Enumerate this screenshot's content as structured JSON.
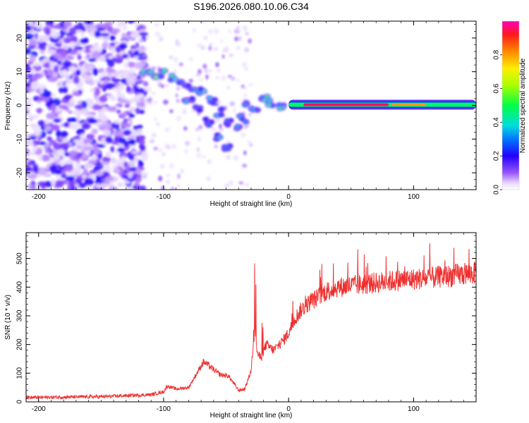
{
  "title": "S196.2026.080.10.06.C34",
  "chart_data": [
    {
      "type": "heatmap",
      "name": "spectrogram",
      "xlabel": "Height of straight line (km)",
      "ylabel": "Frequency (Hz)",
      "xlim": [
        -210,
        150
      ],
      "ylim": [
        -25,
        25
      ],
      "xticks": [
        -200,
        -100,
        0,
        100
      ],
      "yticks": [
        -20,
        -10,
        0,
        10,
        20
      ],
      "xtick_labels": [
        "-200",
        "-100",
        "0",
        "100"
      ],
      "ytick_labels": [
        "-20",
        "-10",
        "0",
        "10",
        "20"
      ],
      "ridge": [
        {
          "x": -115,
          "y": 10.5,
          "a": 0.45
        },
        {
          "x": -108,
          "y": 9.0,
          "a": 0.55
        },
        {
          "x": -100,
          "y": 9.5,
          "a": 0.4
        },
        {
          "x": -92,
          "y": 8.5,
          "a": 0.35
        },
        {
          "x": -85,
          "y": 6.0,
          "a": 0.35
        },
        {
          "x": -78,
          "y": 5.0,
          "a": 0.3
        },
        {
          "x": -70,
          "y": 4.0,
          "a": 0.35
        },
        {
          "x": -62,
          "y": 1.5,
          "a": 0.3
        },
        {
          "x": -55,
          "y": -2.0,
          "a": 0.3
        },
        {
          "x": -48,
          "y": -5.0,
          "a": 0.25
        },
        {
          "x": -42,
          "y": -6.0,
          "a": 0.35
        },
        {
          "x": -37,
          "y": -4.0,
          "a": 0.3
        },
        {
          "x": -80,
          "y": 2.0,
          "a": 0.3
        },
        {
          "x": -72,
          "y": -1.0,
          "a": 0.3
        },
        {
          "x": -64,
          "y": -5.0,
          "a": 0.25
        },
        {
          "x": -57,
          "y": -9.0,
          "a": 0.3
        },
        {
          "x": -50,
          "y": -13.0,
          "a": 0.35
        },
        {
          "x": -33,
          "y": 1.0,
          "a": 0.3
        },
        {
          "x": -27,
          "y": -0.5,
          "a": 0.35
        },
        {
          "x": -20,
          "y": 2.5,
          "a": 0.35
        },
        {
          "x": -13,
          "y": 0.5,
          "a": 0.35
        },
        {
          "x": -5,
          "y": 0.0,
          "a": 0.4
        }
      ],
      "band": {
        "x_start": 0,
        "x_end": 150,
        "freq": 0.2,
        "peak_amplitude": 0.95
      },
      "colorbar": {
        "label": "Normalized spectral amplitude",
        "range": [
          0.0,
          1.0
        ],
        "ticks": [
          0.0,
          0.2,
          0.4,
          0.6,
          0.8
        ],
        "tick_labels": [
          "0.0",
          "0.2",
          "0.4",
          "0.6",
          "0.8"
        ]
      }
    },
    {
      "type": "line",
      "name": "snr",
      "xlabel": "Height of straight line (km)",
      "ylabel": "SNR (10 * v/v)",
      "xlim": [
        -210,
        150
      ],
      "ylim": [
        0,
        590
      ],
      "xticks": [
        -200,
        -100,
        0,
        100
      ],
      "yticks": [
        0,
        100,
        200,
        300,
        400,
        500
      ],
      "xtick_labels": [
        "-200",
        "-100",
        "0",
        "100"
      ],
      "ytick_labels": [
        "0",
        "100",
        "200",
        "300",
        "400",
        "500"
      ],
      "color": "#f03030",
      "series": [
        {
          "name": "SNR",
          "x": [
            -210,
            -150,
            -110,
            -100,
            -97,
            -90,
            -80,
            -72,
            -68,
            -62,
            -55,
            -48,
            -40,
            -35,
            -30,
            -27,
            -25,
            -22,
            -18,
            -12,
            -5,
            0,
            5,
            10,
            15,
            20,
            30,
            40,
            50,
            60,
            70,
            80,
            90,
            100,
            110,
            120,
            130,
            140,
            150
          ],
          "values": [
            15,
            18,
            25,
            35,
            55,
            45,
            50,
            110,
            140,
            120,
            95,
            90,
            40,
            45,
            110,
            260,
            170,
            150,
            200,
            180,
            210,
            240,
            290,
            320,
            340,
            355,
            385,
            400,
            405,
            410,
            415,
            420,
            425,
            428,
            430,
            435,
            440,
            445,
            450
          ]
        }
      ]
    }
  ]
}
